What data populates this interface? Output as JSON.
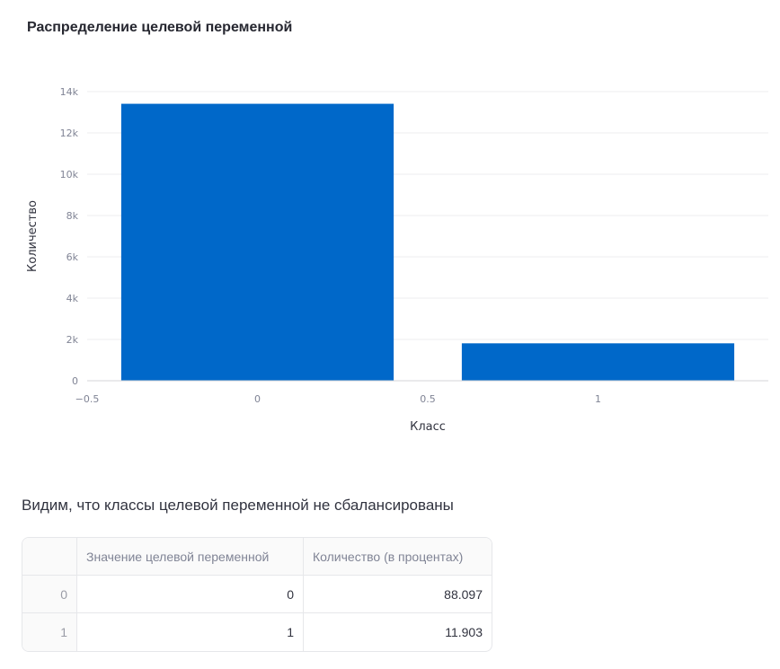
{
  "chart_data": {
    "type": "bar",
    "title": "Распределение целевой переменной",
    "xlabel": "Класс",
    "ylabel": "Количество",
    "x": [
      0,
      1
    ],
    "values": [
      13410,
      1812
    ],
    "xlim": [
      -0.5,
      1.5
    ],
    "ylim": [
      0,
      14000
    ],
    "xticks": [
      {
        "value": -0.5,
        "label": "−0.5"
      },
      {
        "value": 0,
        "label": "0"
      },
      {
        "value": 0.5,
        "label": "0.5"
      },
      {
        "value": 1,
        "label": "1"
      }
    ],
    "yticks": [
      {
        "value": 0,
        "label": "0"
      },
      {
        "value": 2000,
        "label": "2k"
      },
      {
        "value": 4000,
        "label": "4k"
      },
      {
        "value": 6000,
        "label": "6k"
      },
      {
        "value": 8000,
        "label": "8k"
      },
      {
        "value": 10000,
        "label": "10k"
      },
      {
        "value": 12000,
        "label": "12k"
      },
      {
        "value": 14000,
        "label": "14k"
      }
    ],
    "bar_width": 0.8,
    "grid": true,
    "bar_color": "#0068c9"
  },
  "note": "Видим, что классы целевой переменной не сбалансированы",
  "table": {
    "headers": [
      "",
      "Значение целевой переменной",
      "Количество (в процентах)"
    ],
    "rows": [
      {
        "index": "0",
        "value": "0",
        "percent": "88.097"
      },
      {
        "index": "1",
        "value": "1",
        "percent": "11.903"
      }
    ]
  }
}
